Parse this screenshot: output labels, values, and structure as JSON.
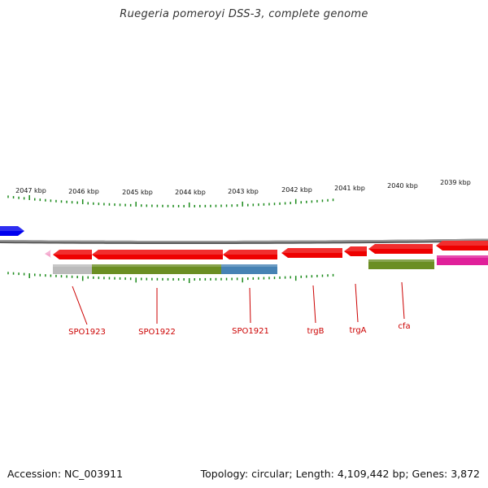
{
  "title": "Ruegeria pomeroyi DSS-3, complete genome",
  "footer": {
    "accession": "Accession: NC_003911",
    "summary": "Topology: circular; Length: 4,109,442 bp; Genes: 3,872"
  },
  "scale_labels": [
    "2047 kbp",
    "2046 kbp",
    "2045 kbp",
    "2044 kbp",
    "2043 kbp",
    "2042 kbp",
    "2041 kbp",
    "2040 kbp",
    "2039 kbp"
  ],
  "gene_labels": [
    "SPO1923",
    "SPO1922",
    "SPO1921",
    "trgB",
    "trgA",
    "cfa"
  ],
  "colors": {
    "backbone": "#888888",
    "tick": "#1a8a1a",
    "cds": "#ee0000",
    "label": "#cc0000",
    "blue_feature": "#0000ee",
    "pink_feature": "#f4a6cc",
    "cog_gray": "#bbbbbb",
    "cog_olive": "#6b8e23",
    "cog_steel": "#4682b4",
    "cog_magenta": "#e0209a"
  }
}
